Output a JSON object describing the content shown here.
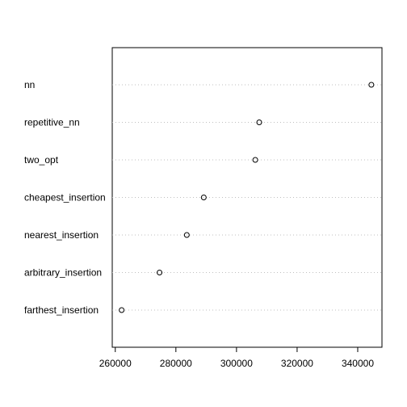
{
  "chart_data": {
    "type": "scatter",
    "title": "",
    "xlabel": "",
    "ylabel": "",
    "categories": [
      "nn",
      "repetitive_nn",
      "two_opt",
      "cheapest_insertion",
      "nearest_insertion",
      "arbitrary_insertion",
      "farthest_insertion"
    ],
    "values": [
      344500,
      307500,
      306200,
      289200,
      283600,
      274600,
      262100
    ],
    "xlim": [
      259000,
      348000
    ],
    "xticks": [
      260000,
      280000,
      300000,
      320000,
      340000
    ],
    "grid": "dotted horizontal guides",
    "legend": "none"
  }
}
